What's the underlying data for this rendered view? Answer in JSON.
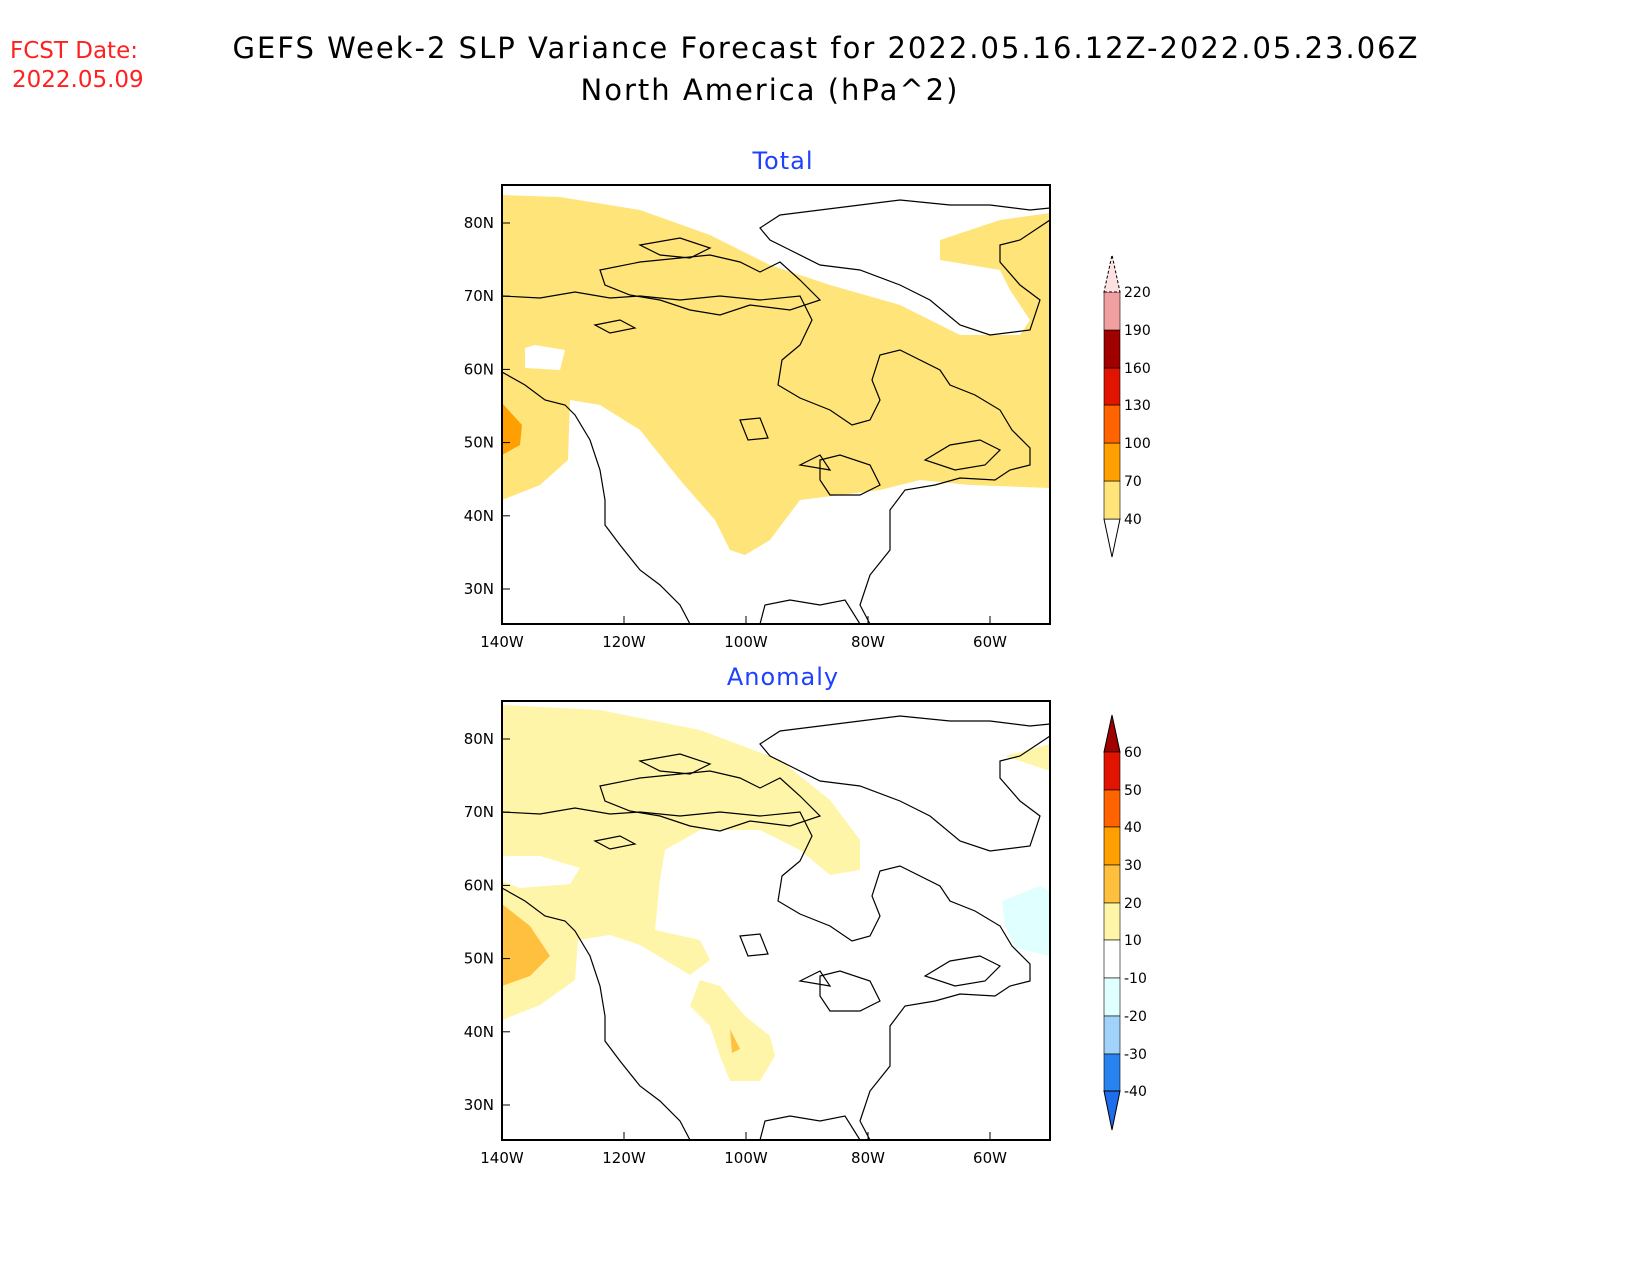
{
  "header": {
    "fcst_label": "FCST Date:",
    "fcst_date": "2022.05.09",
    "title_line1": "GEFS Week-2 SLP Variance Forecast for 2022.05.16.12Z-2022.05.23.06Z",
    "title_line2": "North America (hPa^2)"
  },
  "chart_data": [
    {
      "type": "heatmap",
      "title": "Total",
      "lat_ticks": [
        "80N",
        "70N",
        "60N",
        "50N",
        "40N",
        "30N"
      ],
      "lon_ticks": [
        "140W",
        "120W",
        "100W",
        "80W",
        "60W"
      ],
      "lon_range": [
        -140,
        -50
      ],
      "lat_range": [
        25,
        85
      ],
      "colorbar": {
        "levels": [
          "40",
          "70",
          "100",
          "130",
          "160",
          "190",
          "220"
        ],
        "colors": [
          "#ffe47a",
          "#ffa000",
          "#ff6400",
          "#e01400",
          "#a00000",
          "#f0a0a0",
          "#fde0e0"
        ],
        "below_color": "#ffffff"
      },
      "regions": [
        {
          "range": "40-70",
          "area": "most of Canada, Arctic, NE Pacific, central US plains"
        },
        {
          "range": "70-100",
          "area": "Gulf of Alaska coast near 50N 140W"
        }
      ]
    },
    {
      "type": "heatmap",
      "title": "Anomaly",
      "lat_ticks": [
        "80N",
        "70N",
        "60N",
        "50N",
        "40N",
        "30N"
      ],
      "lon_ticks": [
        "140W",
        "120W",
        "100W",
        "80W",
        "60W"
      ],
      "lon_range": [
        -140,
        -50
      ],
      "lat_range": [
        25,
        85
      ],
      "colorbar": {
        "levels": [
          "60",
          "50",
          "40",
          "30",
          "20",
          "10",
          "-10",
          "-20",
          "-30",
          "-40"
        ],
        "colors": [
          "#a00000",
          "#e01400",
          "#ff6400",
          "#ffa000",
          "#ffc040",
          "#fff5a8",
          "#ffffff",
          "#e0ffff",
          "#a0d2fa",
          "#2882f0",
          "#1e6eeb"
        ]
      },
      "regions": [
        {
          "range": "10-20",
          "area": "Arctic/NW Canada, western plains"
        },
        {
          "range": "20-30",
          "area": "NE Pacific near 50N 140W; small area near 38N 102W"
        },
        {
          "range": "-20 to -10",
          "area": "Labrador Sea"
        }
      ]
    }
  ]
}
